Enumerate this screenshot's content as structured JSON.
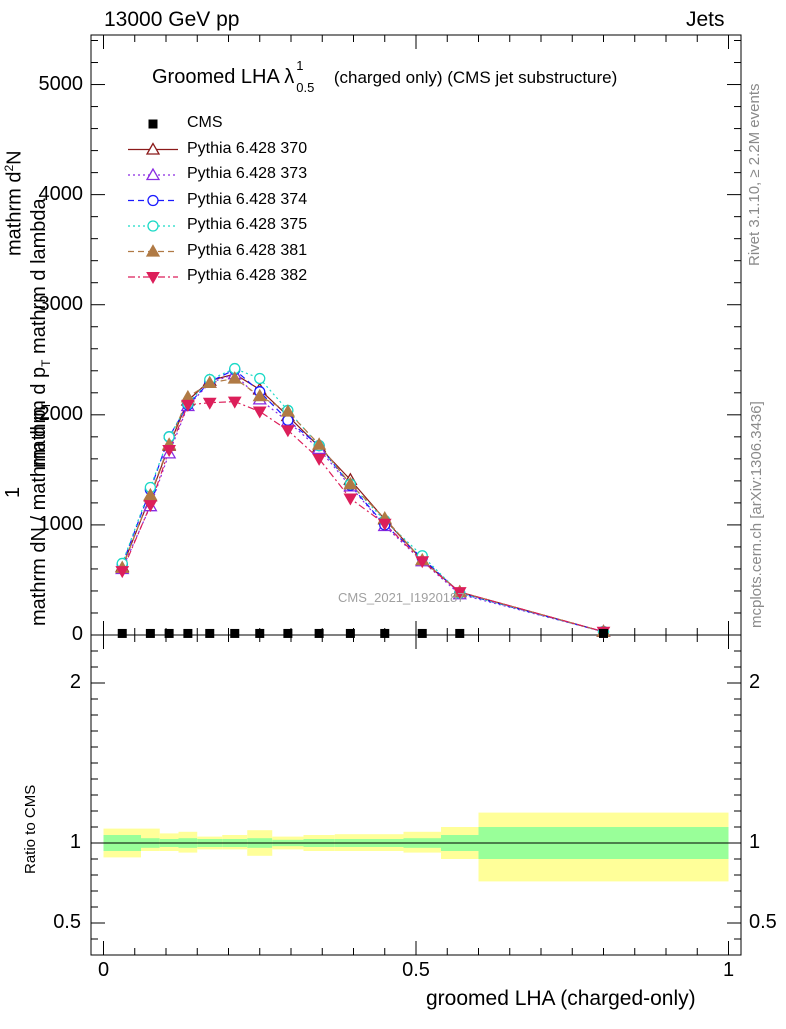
{
  "header": {
    "left": "13000 GeV pp",
    "right": "Jets"
  },
  "side": {
    "rivet": "Rivet 3.1.10, ≥ 2.2M events",
    "mcplots": "mcplots.cern.ch [arXiv:1306.3436]"
  },
  "plot": {
    "title_main": "Groomed LHA λ",
    "title_sup": "1",
    "title_sub": "0.5",
    "title_tail": "(charged only) (CMS jet substructure)",
    "watermark": "CMS_2021_I1920187",
    "xlabel": "groomed LHA (charged-only)",
    "ylabel_num": "1",
    "ylabel_den": "mathrm dN / mathrm d p",
    "ylabel_den_sub": "T",
    "ylabel_mid": "mathrm d p",
    "ylabel_mid_sub": "T",
    "ylabel_tail": "mathrm d lambda",
    "ylabel_top": "mathrm d",
    "ylabel_top_sup": "2",
    "ylabel_top_tail": "N",
    "ratio_ylabel": "Ratio to CMS"
  },
  "chart_data": {
    "type": "line",
    "title": "Groomed LHA λ^1_0.5 (charged only) (CMS jet substructure)",
    "xlabel": "groomed LHA (charged-only)",
    "ylabel": "1 / (mathrm dN / mathrm d p_T) mathrm d^2N / mathrm d p_T mathrm d lambda",
    "xlim": [
      -0.02,
      1.02
    ],
    "ylim": [
      0,
      5450
    ],
    "x_ticks": [
      "0",
      "0.5",
      "1"
    ],
    "y_ticks": [
      "0",
      "1000",
      "2000",
      "3000",
      "4000",
      "5000"
    ],
    "x": [
      0.03,
      0.075,
      0.105,
      0.135,
      0.17,
      0.21,
      0.25,
      0.295,
      0.345,
      0.395,
      0.45,
      0.51,
      0.57,
      0.8
    ],
    "cms": {
      "name": "CMS",
      "values": [
        5,
        5,
        5,
        5,
        5,
        5,
        5,
        5,
        5,
        5,
        5,
        5,
        5,
        5
      ]
    },
    "series": [
      {
        "name": "Pythia 6.428 370",
        "color": "#8b1a1a",
        "dash": "",
        "marker": "triangle-up-open",
        "values": [
          620,
          1260,
          1720,
          2130,
          2310,
          2370,
          2230,
          1990,
          1710,
          1410,
          1050,
          680,
          390,
          30
        ]
      },
      {
        "name": "Pythia 6.428 373",
        "color": "#8a2be2",
        "dash": "2,3",
        "marker": "triangle-up-open",
        "values": [
          600,
          1170,
          1650,
          2080,
          2290,
          2370,
          2140,
          1940,
          1690,
          1350,
          990,
          670,
          370,
          30
        ]
      },
      {
        "name": "Pythia 6.428 374",
        "color": "#1a1aff",
        "dash": "6,4",
        "marker": "circle-open",
        "values": [
          640,
          1320,
          1800,
          2090,
          2300,
          2410,
          2210,
          1950,
          1720,
          1360,
          1000,
          700,
          380,
          30
        ]
      },
      {
        "name": "Pythia 6.428 375",
        "color": "#1ad9c6",
        "dash": "2,3",
        "marker": "circle-open",
        "values": [
          650,
          1340,
          1800,
          2100,
          2320,
          2420,
          2330,
          2040,
          1720,
          1370,
          1040,
          720,
          380,
          30
        ]
      },
      {
        "name": "Pythia 6.428 381",
        "color": "#b07a45",
        "dash": "6,4",
        "marker": "triangle-up-filled",
        "values": [
          610,
          1270,
          1730,
          2160,
          2290,
          2330,
          2170,
          2030,
          1730,
          1370,
          1060,
          680,
          390,
          30
        ]
      },
      {
        "name": "Pythia 6.428 382",
        "color": "#dc1f5a",
        "dash": "7,3,2,3",
        "marker": "triangle-down-filled",
        "values": [
          580,
          1180,
          1680,
          2090,
          2110,
          2120,
          2030,
          1860,
          1600,
          1240,
          1010,
          670,
          390,
          30
        ]
      }
    ],
    "ratio": {
      "ylabel": "Ratio to CMS",
      "ylim": [
        0.3,
        2.3
      ],
      "y_ticks": [
        "0.5",
        "1",
        "2"
      ],
      "bins": [
        {
          "lo": 0.0,
          "hi": 0.06,
          "inner": [
            0.95,
            1.05
          ],
          "outer": [
            0.91,
            1.09
          ]
        },
        {
          "lo": 0.06,
          "hi": 0.09,
          "inner": [
            0.97,
            1.03
          ],
          "outer": [
            0.95,
            1.09
          ]
        },
        {
          "lo": 0.09,
          "hi": 0.12,
          "inner": [
            0.975,
            1.025
          ],
          "outer": [
            0.95,
            1.06
          ]
        },
        {
          "lo": 0.12,
          "hi": 0.15,
          "inner": [
            0.97,
            1.03
          ],
          "outer": [
            0.94,
            1.07
          ]
        },
        {
          "lo": 0.15,
          "hi": 0.19,
          "inner": [
            0.975,
            1.025
          ],
          "outer": [
            0.96,
            1.04
          ]
        },
        {
          "lo": 0.19,
          "hi": 0.23,
          "inner": [
            0.975,
            1.025
          ],
          "outer": [
            0.96,
            1.05
          ]
        },
        {
          "lo": 0.23,
          "hi": 0.27,
          "inner": [
            0.97,
            1.03
          ],
          "outer": [
            0.92,
            1.08
          ]
        },
        {
          "lo": 0.27,
          "hi": 0.32,
          "inner": [
            0.98,
            1.02
          ],
          "outer": [
            0.96,
            1.04
          ]
        },
        {
          "lo": 0.32,
          "hi": 0.37,
          "inner": [
            0.975,
            1.025
          ],
          "outer": [
            0.95,
            1.05
          ]
        },
        {
          "lo": 0.37,
          "hi": 0.42,
          "inner": [
            0.975,
            1.025
          ],
          "outer": [
            0.95,
            1.055
          ]
        },
        {
          "lo": 0.42,
          "hi": 0.48,
          "inner": [
            0.975,
            1.025
          ],
          "outer": [
            0.95,
            1.055
          ]
        },
        {
          "lo": 0.48,
          "hi": 0.54,
          "inner": [
            0.97,
            1.03
          ],
          "outer": [
            0.94,
            1.07
          ]
        },
        {
          "lo": 0.54,
          "hi": 0.6,
          "inner": [
            0.95,
            1.05
          ],
          "outer": [
            0.9,
            1.1
          ]
        },
        {
          "lo": 0.6,
          "hi": 1.0,
          "inner": [
            0.9,
            1.1
          ],
          "outer": [
            0.76,
            1.19
          ]
        }
      ]
    },
    "legend_position": "top-left",
    "grid": false
  }
}
